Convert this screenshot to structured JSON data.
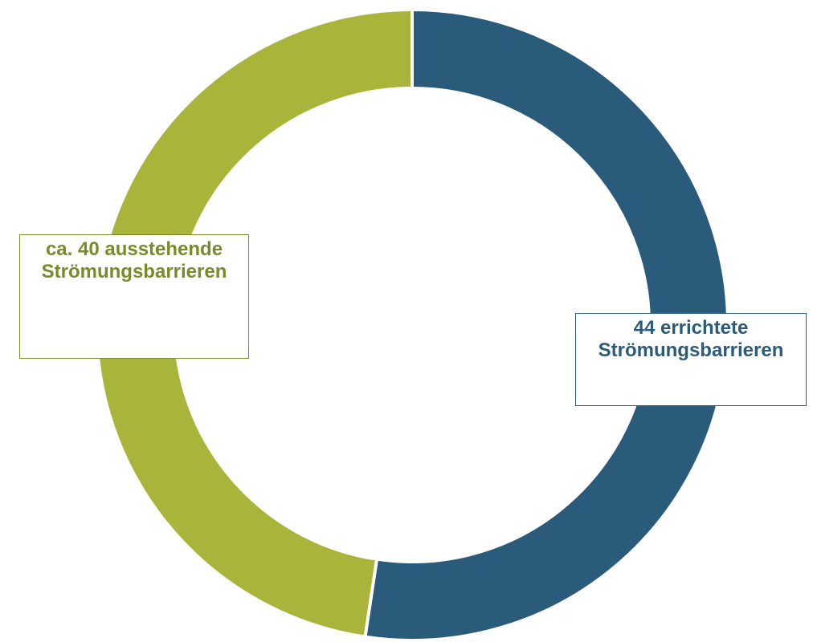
{
  "chart_data": {
    "type": "donut",
    "categories": [
      "errichtete Strömungsbarrieren",
      "ausstehende Strömungsbarrieren"
    ],
    "values": [
      44,
      40
    ],
    "value_labels": [
      "44",
      "ca. 40"
    ],
    "colors": [
      "#2b5b7a",
      "#a9b53a"
    ],
    "label_colors": [
      "#2b5b7a",
      "#7a8a2a"
    ]
  }
}
